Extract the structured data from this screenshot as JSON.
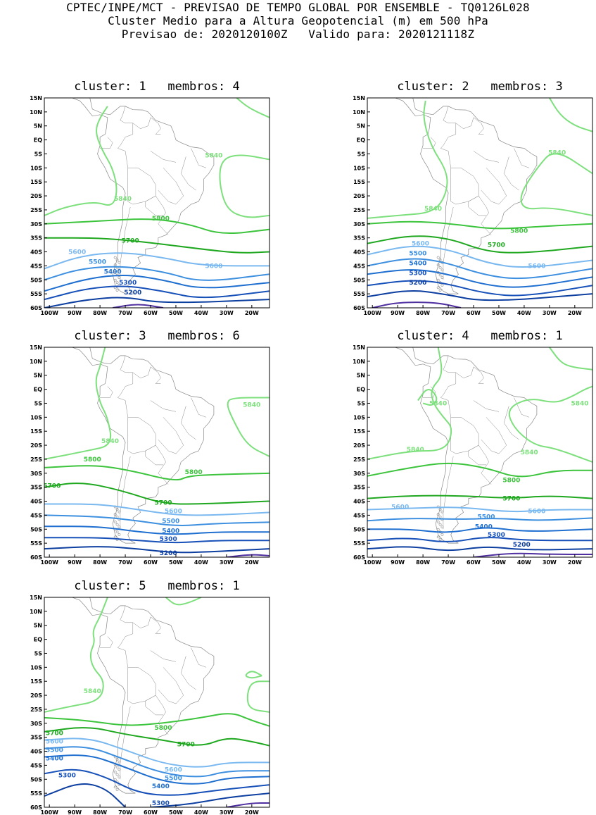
{
  "header": {
    "line1": "CPTEC/INPE/MCT - PREVISAO DE TEMPO GLOBAL POR ENSEMBLE - TQ0126L028",
    "line2": "Cluster Medio para a Altura Geopotencial (m) em 500 hPa",
    "line3": "Previsao de: 2020120100Z   Valido para: 2020121118Z"
  },
  "axes": {
    "lat_labels": [
      "15N",
      "10N",
      "5N",
      "EQ",
      "5S",
      "10S",
      "15S",
      "20S",
      "25S",
      "30S",
      "35S",
      "40S",
      "45S",
      "50S",
      "55S",
      "60S"
    ],
    "lon_labels": [
      "100W",
      "90W",
      "80W",
      "70W",
      "60W",
      "50W",
      "40W",
      "30W",
      "20W"
    ]
  },
  "colors": {
    "c5840": "#7de07d",
    "c5800": "#3cc43c",
    "c5700": "#1fa81f",
    "c5600": "#7ab8f0",
    "c5500": "#3d8fe0",
    "c5400": "#1f6fd0",
    "c5300": "#1650b8",
    "c5200": "#0d3fa0",
    "c5100": "#5030a0",
    "coast": "#888888"
  },
  "panels": [
    {
      "title": "cluster: 1   membros: 4",
      "labels": [
        {
          "text": "5840",
          "color": "c5840"
        },
        {
          "text": "5840",
          "color": "c5840"
        },
        {
          "text": "5800",
          "color": "c5800"
        },
        {
          "text": "5700",
          "color": "c5700"
        },
        {
          "text": "5600",
          "color": "c5600"
        },
        {
          "text": "5600",
          "color": "c5600"
        },
        {
          "text": "5500",
          "color": "c5500"
        },
        {
          "text": "5400",
          "color": "c5400"
        },
        {
          "text": "5300",
          "color": "c5300"
        },
        {
          "text": "5200",
          "color": "c5200"
        }
      ]
    },
    {
      "title": "cluster: 2   membros: 3",
      "labels": [
        {
          "text": "5840",
          "color": "c5840"
        },
        {
          "text": "5840",
          "color": "c5840"
        },
        {
          "text": "5800",
          "color": "c5800"
        },
        {
          "text": "5700",
          "color": "c5700"
        },
        {
          "text": "5600",
          "color": "c5600"
        },
        {
          "text": "5600",
          "color": "c5600"
        },
        {
          "text": "5500",
          "color": "c5500"
        },
        {
          "text": "5400",
          "color": "c5400"
        },
        {
          "text": "5300",
          "color": "c5300"
        },
        {
          "text": "5200",
          "color": "c5200"
        }
      ]
    },
    {
      "title": "cluster: 3   membros: 6",
      "labels": [
        {
          "text": "5840",
          "color": "c5840"
        },
        {
          "text": "5840",
          "color": "c5840"
        },
        {
          "text": "5800",
          "color": "c5800"
        },
        {
          "text": "5800",
          "color": "c5800"
        },
        {
          "text": "5700",
          "color": "c5700"
        },
        {
          "text": "5700",
          "color": "c5700"
        },
        {
          "text": "5600",
          "color": "c5600"
        },
        {
          "text": "5500",
          "color": "c5500"
        },
        {
          "text": "5400",
          "color": "c5400"
        },
        {
          "text": "5300",
          "color": "c5300"
        },
        {
          "text": "5200",
          "color": "c5200"
        }
      ]
    },
    {
      "title": "cluster: 4   membros: 1",
      "labels": [
        {
          "text": "5840",
          "color": "c5840"
        },
        {
          "text": "5840",
          "color": "c5840"
        },
        {
          "text": "5840",
          "color": "c5840"
        },
        {
          "text": "5840",
          "color": "c5840"
        },
        {
          "text": "5800",
          "color": "c5800"
        },
        {
          "text": "5700",
          "color": "c5700"
        },
        {
          "text": "5600",
          "color": "c5600"
        },
        {
          "text": "5600",
          "color": "c5600"
        },
        {
          "text": "5500",
          "color": "c5500"
        },
        {
          "text": "5400",
          "color": "c5400"
        },
        {
          "text": "5300",
          "color": "c5300"
        },
        {
          "text": "5200",
          "color": "c5200"
        }
      ]
    },
    {
      "title": "cluster: 5   membros: 1",
      "labels": [
        {
          "text": "5840",
          "color": "c5840"
        },
        {
          "text": "5800",
          "color": "c5800"
        },
        {
          "text": "5700",
          "color": "c5700"
        },
        {
          "text": "5700",
          "color": "c5700"
        },
        {
          "text": "5600",
          "color": "c5600"
        },
        {
          "text": "5600",
          "color": "c5600"
        },
        {
          "text": "5500",
          "color": "c5500"
        },
        {
          "text": "5500",
          "color": "c5500"
        },
        {
          "text": "5400",
          "color": "c5400"
        },
        {
          "text": "5400",
          "color": "c5400"
        },
        {
          "text": "5300",
          "color": "c5300"
        },
        {
          "text": "5300",
          "color": "c5300"
        }
      ]
    }
  ]
}
